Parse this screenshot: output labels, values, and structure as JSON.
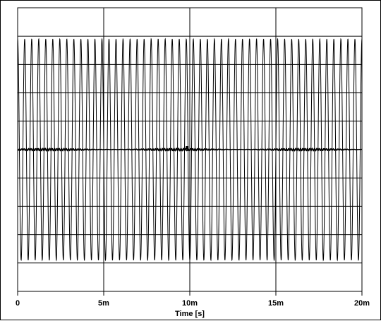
{
  "chart_data": {
    "type": "line",
    "title": "",
    "xlabel": "Time [s]",
    "ylabel": "",
    "x_tick_labels": [
      "0",
      "5m",
      "10m",
      "15m",
      "20m"
    ],
    "x_ticks": [
      0,
      0.005,
      0.01,
      0.015,
      0.02
    ],
    "xlim": [
      0,
      0.02
    ],
    "grid": true,
    "grid_rows": 10,
    "grid_cols": 4,
    "series": [
      {
        "style": "sinusoid",
        "color": "#000000",
        "frequency_hz": 2450,
        "cycles_visible": 49,
        "amplitude_fraction_of_plot": 0.39,
        "offset_fraction_of_plot": 0.0
      },
      {
        "style": "near-zero ripple",
        "color": "#000000",
        "amplitude_fraction_of_plot": 0.004,
        "offset_fraction_of_plot": 0.0
      }
    ],
    "marker": {
      "x": 0.00985,
      "label": ""
    }
  }
}
